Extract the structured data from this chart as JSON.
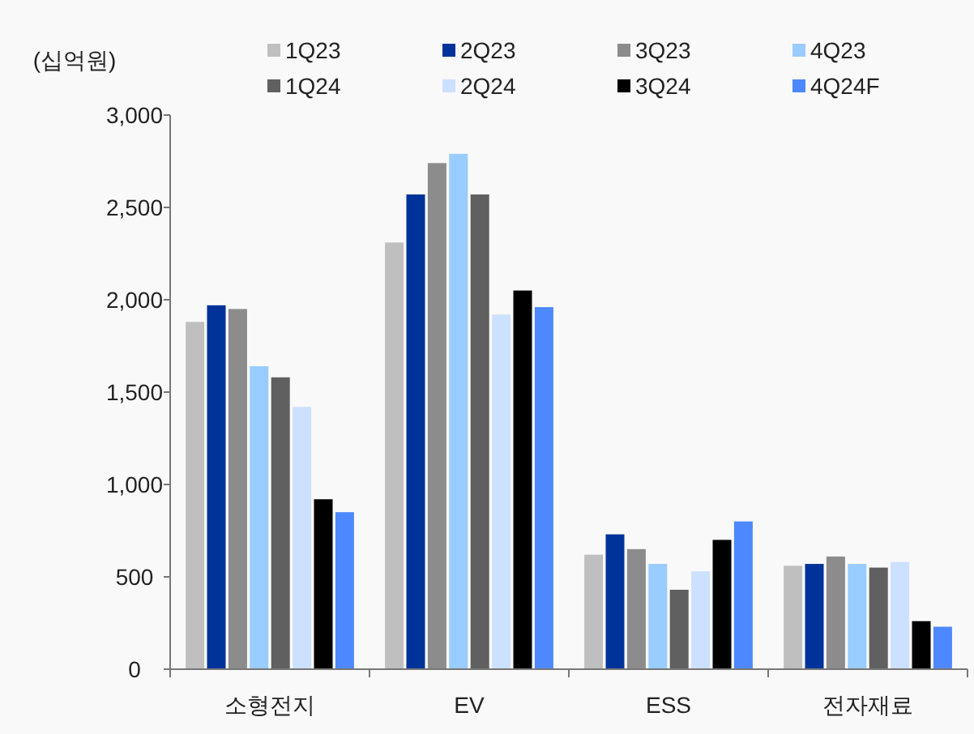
{
  "chart_data": {
    "type": "bar",
    "ylabel": "(십억원)",
    "categories": [
      "소형전지",
      "EV",
      "ESS",
      "전자재료"
    ],
    "series": [
      {
        "name": "1Q23",
        "color": "#bfbfbf",
        "values": [
          1880,
          2310,
          620,
          560
        ]
      },
      {
        "name": "2Q23",
        "color": "#003399",
        "values": [
          1970,
          2570,
          730,
          570
        ]
      },
      {
        "name": "3Q23",
        "color": "#8c8c8c",
        "values": [
          1950,
          2740,
          650,
          610
        ]
      },
      {
        "name": "4Q23",
        "color": "#99ccff",
        "values": [
          1640,
          2790,
          570,
          570
        ]
      },
      {
        "name": "1Q24",
        "color": "#606060",
        "values": [
          1580,
          2570,
          430,
          550
        ]
      },
      {
        "name": "2Q24",
        "color": "#cce0ff",
        "values": [
          1420,
          1920,
          530,
          580
        ]
      },
      {
        "name": "3Q24",
        "color": "#000000",
        "values": [
          920,
          2050,
          700,
          260
        ]
      },
      {
        "name": "4Q24F",
        "color": "#4d88ff",
        "values": [
          850,
          1960,
          800,
          230
        ]
      }
    ],
    "ylim": [
      0,
      3000
    ],
    "yticks": [
      {
        "value": 0,
        "label": "0"
      },
      {
        "value": 500,
        "label": "500"
      },
      {
        "value": 1000,
        "label": "1,000"
      },
      {
        "value": 1500,
        "label": "1,500"
      },
      {
        "value": 2000,
        "label": "2,000"
      },
      {
        "value": 2500,
        "label": "2,500"
      },
      {
        "value": 3000,
        "label": "3,000"
      }
    ],
    "grid": false,
    "legend": "top"
  }
}
